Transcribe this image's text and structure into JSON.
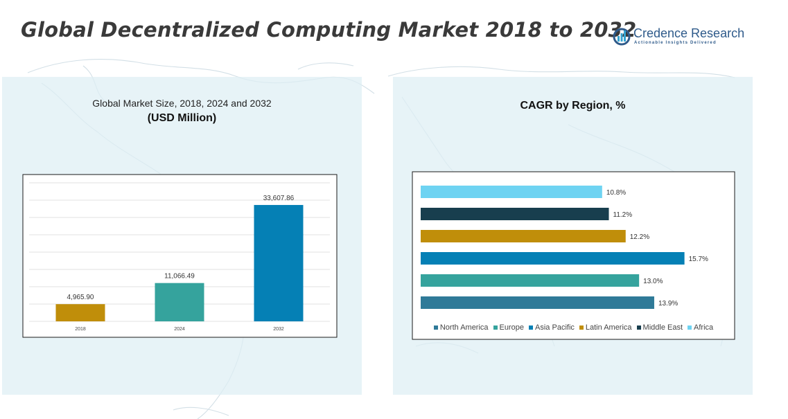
{
  "header": {
    "title": "Global Decentralized Computing Market 2018 to 2032"
  },
  "logo": {
    "name": "Credence Research",
    "tagline": "Actionable Insights Delivered"
  },
  "colors": {
    "north_america": "#2f7a98",
    "europe": "#35a39d",
    "asia_pacific": "#0580b5",
    "latin_america": "#c08e0a",
    "middle_east": "#183e4e",
    "africa": "#6ed3f2",
    "panel_bg": "#deeef4"
  },
  "chart_data": [
    {
      "type": "bar",
      "title": "Global Market Size, 2018, 2024 and 2032",
      "subtitle": "(USD Million)",
      "categories": [
        "2018",
        "2024",
        "2032"
      ],
      "values": [
        4965.9,
        11066.49,
        33607.86
      ],
      "value_labels": [
        "4,965.90",
        "11,066.49",
        "33,607.86"
      ],
      "bar_colors": [
        "#c08e0a",
        "#35a39d",
        "#0580b5"
      ],
      "ylim": [
        0,
        40000
      ],
      "grid": true
    },
    {
      "type": "bar",
      "orientation": "horizontal",
      "title": "CAGR by Region, %",
      "categories": [
        "North America",
        "Europe",
        "Asia Pacific",
        "Latin America",
        "Middle East",
        "Africa"
      ],
      "values": [
        13.9,
        13.0,
        15.7,
        12.2,
        11.2,
        10.8
      ],
      "value_labels": [
        "13.9%",
        "13.0%",
        "15.7%",
        "12.2%",
        "11.2%",
        "10.8%"
      ],
      "bar_colors": [
        "#2f7a98",
        "#35a39d",
        "#0580b5",
        "#c08e0a",
        "#183e4e",
        "#6ed3f2"
      ],
      "xlim": [
        0,
        16.5
      ],
      "legend": "bottom"
    }
  ]
}
